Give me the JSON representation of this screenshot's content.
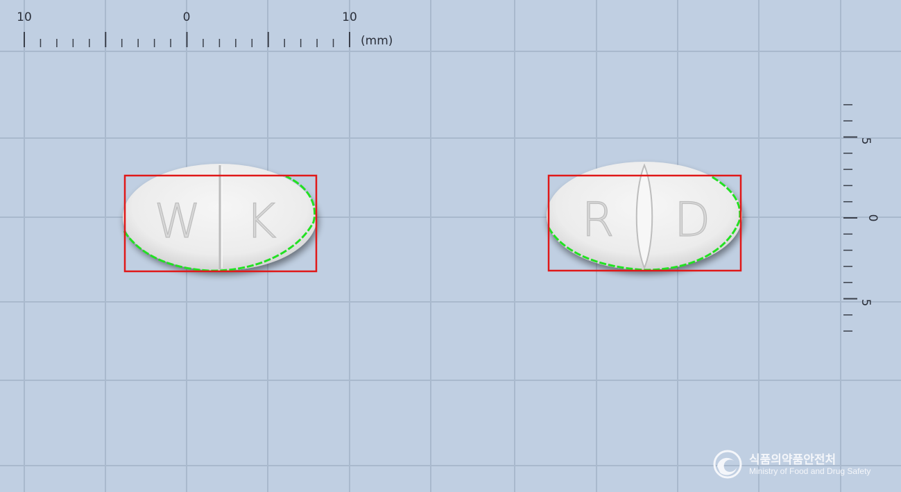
{
  "ruler_top": {
    "labels": [
      "10",
      "0",
      "10"
    ],
    "unit": "(mm)"
  },
  "ruler_right": {
    "labels": [
      "5",
      "0",
      "5"
    ]
  },
  "pills": [
    {
      "imprint_left": "W",
      "imprint_right": "K",
      "score": "straight line"
    },
    {
      "imprint_left": "R",
      "imprint_right": "D",
      "score": "lens-shaped groove"
    }
  ],
  "colors": {
    "background": "#c0cfe2",
    "grid": "#a9b9cd",
    "bounding_box": "#e01818",
    "contour": "#22e022",
    "pill": "#efefef"
  },
  "watermark": {
    "title_ko": "식품의약품안전처",
    "title_en": "Ministry of Food and Drug Safety",
    "icon": "mfds-logo-icon"
  }
}
